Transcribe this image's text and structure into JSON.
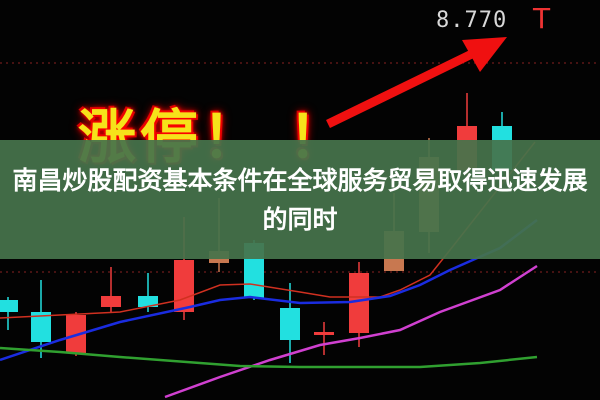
{
  "chart": {
    "price_label": "8.770",
    "limit_mark": "T",
    "slogan": "涨停！ ！",
    "colors": {
      "up": "#f03c3c",
      "down": "#22e0e0",
      "flat": "#c87850",
      "ma5": "#d03020",
      "ma10": "#1a2ce0",
      "ma20": "#d040d0",
      "ma60": "#30a030",
      "arrow": "#f01010"
    }
  },
  "banner": {
    "title": "南昌炒股配资基本条件在全球服务贸易取得迅速发展的同时"
  }
}
